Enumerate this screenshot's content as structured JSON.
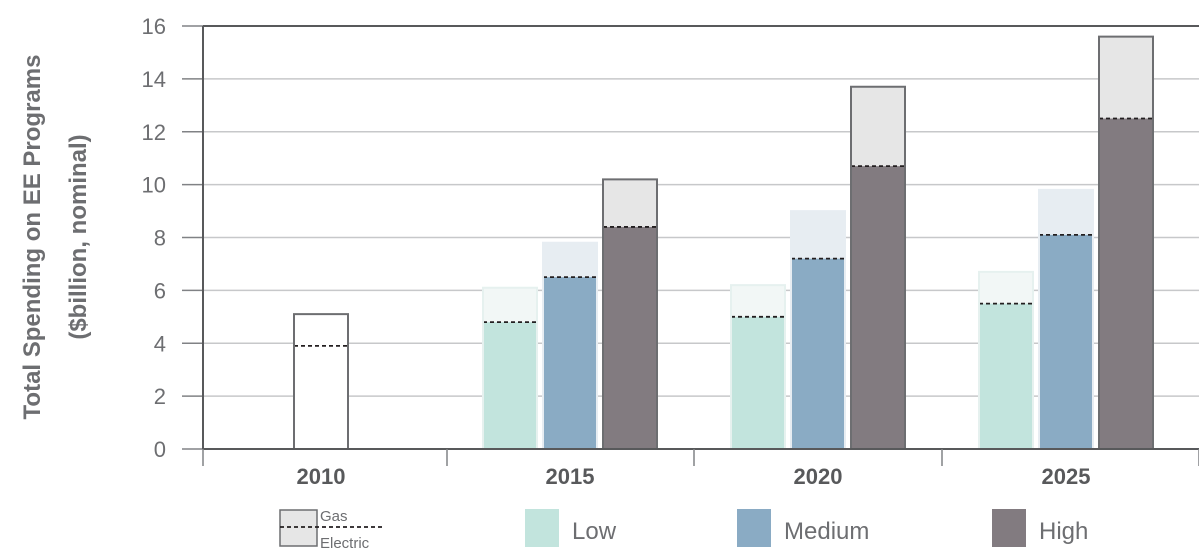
{
  "chart_data": {
    "type": "bar",
    "subtype": "stacked-grouped",
    "ylabel_lines": [
      "Total Spending on EE Programs",
      "($billion, nominal)"
    ],
    "ylim": [
      0,
      16
    ],
    "yticks": [
      0,
      2,
      4,
      6,
      8,
      10,
      12,
      14,
      16
    ],
    "grid": true,
    "categories": [
      "2010",
      "2015",
      "2020",
      "2025"
    ],
    "series": [
      {
        "name": "Low",
        "color": "#c2e4dd",
        "gas_color": "#f2f7f6",
        "values": [
          null,
          {
            "electric": 4.8,
            "total": 6.1
          },
          {
            "electric": 5.0,
            "total": 6.2
          },
          {
            "electric": 5.5,
            "total": 6.7
          }
        ]
      },
      {
        "name": "Medium",
        "color": "#8aabc4",
        "gas_color": "#e7edf2",
        "values": [
          null,
          {
            "electric": 6.5,
            "total": 7.8
          },
          {
            "electric": 7.2,
            "total": 9.0
          },
          {
            "electric": 8.1,
            "total": 9.8
          }
        ]
      },
      {
        "name": "High",
        "color": "#827b80",
        "gas_color": "#e6e6e6",
        "values": [
          null,
          {
            "electric": 8.4,
            "total": 10.2
          },
          {
            "electric": 10.7,
            "total": 13.7
          },
          {
            "electric": 12.5,
            "total": 15.6
          }
        ]
      }
    ],
    "historical": {
      "category": "2010",
      "electric": 3.9,
      "total": 5.1,
      "color": "#ffffff"
    },
    "legend": {
      "key": {
        "gas_label": "Gas",
        "electric_label": "Electric"
      },
      "items": [
        "Low",
        "Medium",
        "High"
      ],
      "placement": "bottom"
    }
  }
}
